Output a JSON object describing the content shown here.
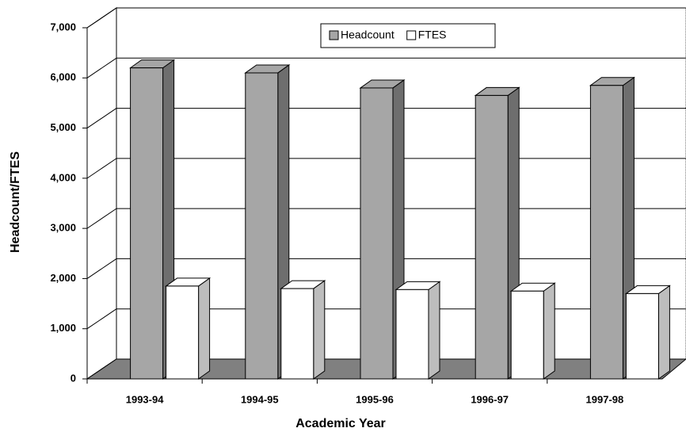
{
  "chart_data": {
    "type": "bar3d",
    "x_label": "Academic Year",
    "y_label": "Headcount/FTES",
    "categories": [
      "1993-94",
      "1994-95",
      "1995-96",
      "1996-97",
      "1997-98"
    ],
    "series": [
      {
        "name": "Headcount",
        "color": "#a6a6a6",
        "values": [
          6200,
          6100,
          5800,
          5650,
          5850
        ]
      },
      {
        "name": "FTES",
        "color": "#ffffff",
        "values": [
          1850,
          1800,
          1780,
          1750,
          1700
        ]
      }
    ],
    "ylim": [
      0,
      7000
    ],
    "yticks": [
      0,
      {
        "value": 1000,
        "label": "1,000"
      },
      {
        "value": 2000,
        "label": "2,000"
      },
      {
        "value": 3000,
        "label": "3,000"
      },
      {
        "value": 4000,
        "label": "4,000"
      },
      {
        "value": 5000,
        "label": "5,000"
      },
      {
        "value": 6000,
        "label": "6,000"
      },
      {
        "value": 7000,
        "label": "7,000"
      }
    ],
    "grid": true,
    "legend": "top"
  }
}
